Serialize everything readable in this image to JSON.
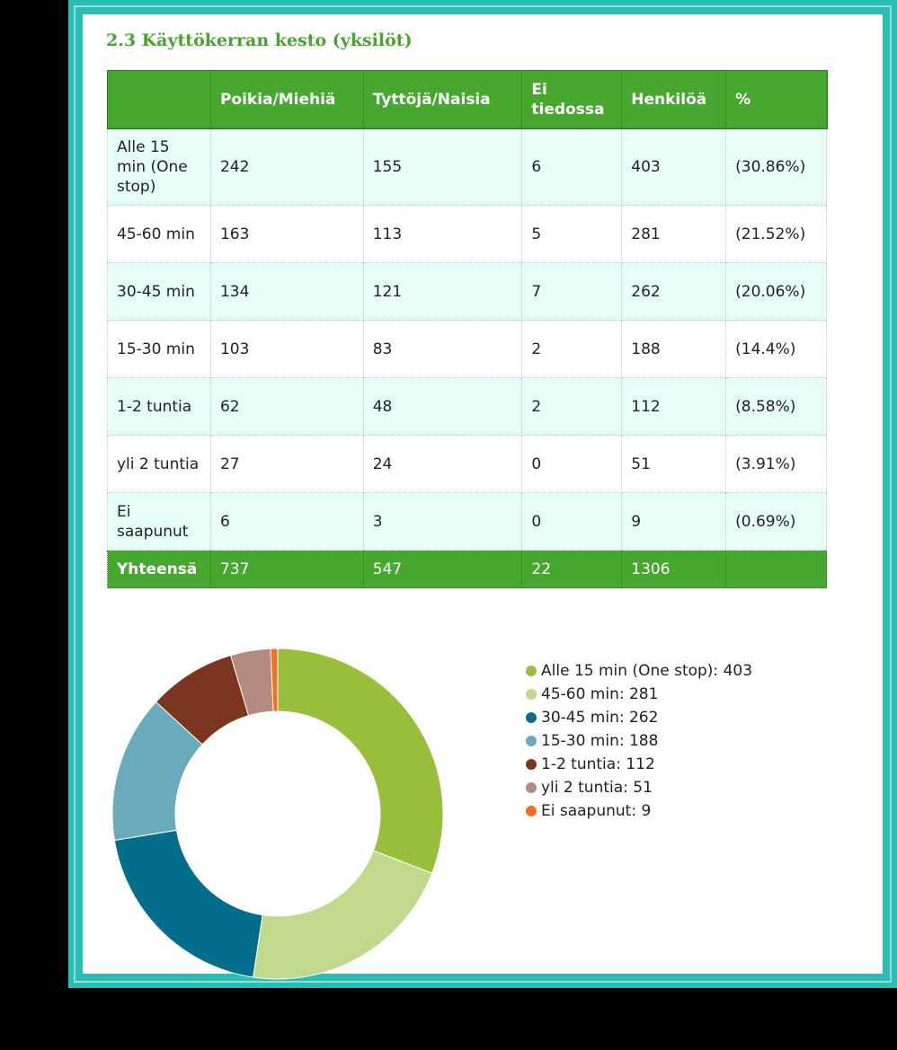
{
  "title": "2.3 Käyttökerran kesto (yksilöt)",
  "table": {
    "headers": [
      "",
      "Poikia/Miehiä",
      "Tyttöjä/Naisia",
      "Ei tiedossa",
      "Henkilöä",
      "%"
    ],
    "rows": [
      {
        "label": "Alle 15 min (One stop)",
        "male": "242",
        "female": "155",
        "unknown": "6",
        "persons": "403",
        "pct": "(30.86%)"
      },
      {
        "label": "45-60 min",
        "male": "163",
        "female": "113",
        "unknown": "5",
        "persons": "281",
        "pct": "(21.52%)"
      },
      {
        "label": "30-45 min",
        "male": "134",
        "female": "121",
        "unknown": "7",
        "persons": "262",
        "pct": "(20.06%)"
      },
      {
        "label": "15-30 min",
        "male": "103",
        "female": "83",
        "unknown": "2",
        "persons": "188",
        "pct": "(14.4%)"
      },
      {
        "label": "1-2 tuntia",
        "male": "62",
        "female": "48",
        "unknown": "2",
        "persons": "112",
        "pct": "(8.58%)"
      },
      {
        "label": "yli 2 tuntia",
        "male": "27",
        "female": "24",
        "unknown": "0",
        "persons": "51",
        "pct": "(3.91%)"
      },
      {
        "label": "Ei saapunut",
        "male": "6",
        "female": "3",
        "unknown": "0",
        "persons": "9",
        "pct": "(0.69%)"
      }
    ],
    "total": {
      "label": "Yhteensä",
      "male": "737",
      "female": "547",
      "unknown": "22",
      "persons": "1306",
      "pct": ""
    }
  },
  "chart_data": [
    {
      "type": "table",
      "title": "2.3 Käyttökerran kesto (yksilöt)",
      "columns": [
        "Poikia/Miehiä",
        "Tyttöjä/Naisia",
        "Ei tiedossa",
        "Henkilöä",
        "%"
      ],
      "categories": [
        "Alle 15 min (One stop)",
        "45-60 min",
        "30-45 min",
        "15-30 min",
        "1-2 tuntia",
        "yli 2 tuntia",
        "Ei saapunut"
      ],
      "series": [
        {
          "name": "Poikia/Miehiä",
          "values": [
            242,
            163,
            134,
            103,
            62,
            27,
            6
          ]
        },
        {
          "name": "Tyttöjä/Naisia",
          "values": [
            155,
            113,
            121,
            83,
            48,
            24,
            3
          ]
        },
        {
          "name": "Ei tiedossa",
          "values": [
            6,
            5,
            7,
            2,
            2,
            0,
            0
          ]
        },
        {
          "name": "Henkilöä",
          "values": [
            403,
            281,
            262,
            188,
            112,
            51,
            9
          ]
        },
        {
          "name": "%",
          "values": [
            30.86,
            21.52,
            20.06,
            14.4,
            8.58,
            3.91,
            0.69
          ]
        }
      ],
      "totals": {
        "label": "Yhteensä",
        "values": [
          737,
          547,
          22,
          1306
        ]
      }
    },
    {
      "type": "pie",
      "variant": "donut",
      "legend_position": "right",
      "categories": [
        "Alle 15 min (One stop)",
        "45-60 min",
        "30-45 min",
        "15-30 min",
        "1-2 tuntia",
        "yli 2 tuntia",
        "Ei saapunut"
      ],
      "values": [
        403,
        281,
        262,
        188,
        112,
        51,
        9
      ],
      "legend_labels": [
        "Alle 15 min (One stop): 403",
        "45-60 min: 281",
        "30-45 min: 262",
        "15-30 min: 188",
        "1-2 tuntia: 112",
        "yli 2 tuntia: 51",
        "Ei saapunut: 9"
      ],
      "colors": [
        "#98bf3b",
        "#c1d98a",
        "#036e8c",
        "#69aabd",
        "#7c3620",
        "#b58a80",
        "#f07024"
      ]
    }
  ]
}
